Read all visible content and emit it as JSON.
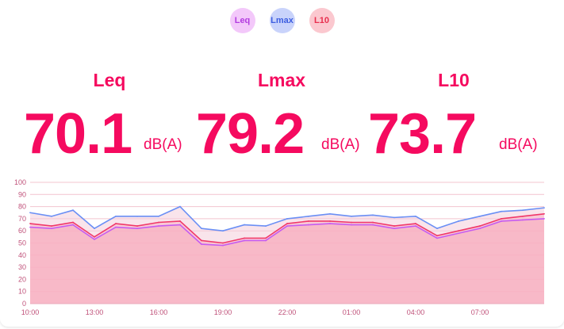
{
  "colors": {
    "accent": "#f50a5f",
    "leq": "#c65bf0",
    "lmax": "#6a8ff5",
    "l10": "#f0386a"
  },
  "legend": [
    {
      "label": "Leq",
      "bg": "#f3c8fa",
      "color": "#b33ce0"
    },
    {
      "label": "Lmax",
      "bg": "#c9d3fb",
      "color": "#3d5ee0"
    },
    {
      "label": "L10",
      "bg": "#fbc8cf",
      "color": "#e8304f"
    }
  ],
  "stats": {
    "leq": {
      "label": "Leq",
      "value": "70.1",
      "unit": "dB(A)"
    },
    "lmax": {
      "label": "Lmax",
      "value": "79.2",
      "unit": "dB(A)"
    },
    "l10": {
      "label": "L10",
      "value": "73.7",
      "unit": "dB(A)"
    }
  },
  "chart_data": {
    "type": "area",
    "x": [
      "10:00",
      "11:00",
      "12:00",
      "13:00",
      "14:00",
      "15:00",
      "16:00",
      "17:00",
      "18:00",
      "19:00",
      "20:00",
      "21:00",
      "22:00",
      "23:00",
      "00:00",
      "01:00",
      "02:00",
      "03:00",
      "04:00",
      "05:00",
      "06:00",
      "07:00",
      "08:00",
      "09:00",
      "10:00"
    ],
    "x_tick_labels": [
      "13:00",
      "16:00",
      "19:00",
      "22:00",
      "01:00",
      "04:00",
      "07:00",
      "10:00"
    ],
    "y_ticks": [
      0,
      10,
      20,
      30,
      40,
      50,
      60,
      70,
      80,
      90,
      100
    ],
    "ylim": [
      0,
      100
    ],
    "grid": true,
    "series": [
      {
        "name": "Lmax",
        "values": [
          75,
          72,
          77,
          62,
          72,
          72,
          72,
          80,
          62,
          60,
          65,
          64,
          70,
          72,
          74,
          72,
          73,
          71,
          72,
          62,
          68,
          72,
          76,
          77,
          79
        ]
      },
      {
        "name": "L10",
        "values": [
          66,
          64,
          67,
          55,
          66,
          64,
          67,
          68,
          52,
          50,
          54,
          54,
          66,
          68,
          68,
          67,
          67,
          64,
          66,
          56,
          60,
          64,
          70,
          72,
          74
        ]
      },
      {
        "name": "Leq",
        "values": [
          63,
          62,
          65,
          53,
          63,
          62,
          64,
          65,
          49,
          48,
          52,
          52,
          64,
          65,
          66,
          65,
          65,
          62,
          64,
          54,
          58,
          62,
          68,
          69,
          70
        ]
      }
    ]
  }
}
